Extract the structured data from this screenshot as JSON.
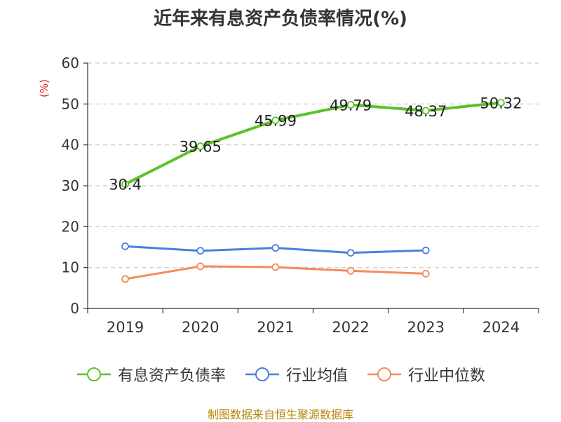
{
  "chart_data": {
    "type": "line",
    "title": "近年来有息资产负债率情况(%)",
    "ylabel": "(%)",
    "xlabel": "",
    "categories": [
      "2019",
      "2020",
      "2021",
      "2022",
      "2023",
      "2024"
    ],
    "ylim": [
      0,
      60
    ],
    "yticks": [
      0,
      10,
      20,
      30,
      40,
      50,
      60
    ],
    "grid": true,
    "legend_position": "bottom",
    "series": [
      {
        "name": "有息资产负债率",
        "color": "#5cc12a",
        "values": [
          30.4,
          39.65,
          45.99,
          49.79,
          48.37,
          50.32
        ],
        "data_labels": [
          "30.4",
          "39.65",
          "45.99",
          "49.79",
          "48.37",
          "50.32"
        ]
      },
      {
        "name": "行业均值",
        "color": "#4a7fdc",
        "values": [
          15.2,
          14.1,
          14.8,
          13.6,
          14.2,
          null
        ]
      },
      {
        "name": "行业中位数",
        "color": "#f58a5a",
        "values": [
          7.2,
          10.3,
          10.1,
          9.2,
          8.5,
          null
        ]
      }
    ],
    "source": "制图数据来自恒生聚源数据库"
  }
}
